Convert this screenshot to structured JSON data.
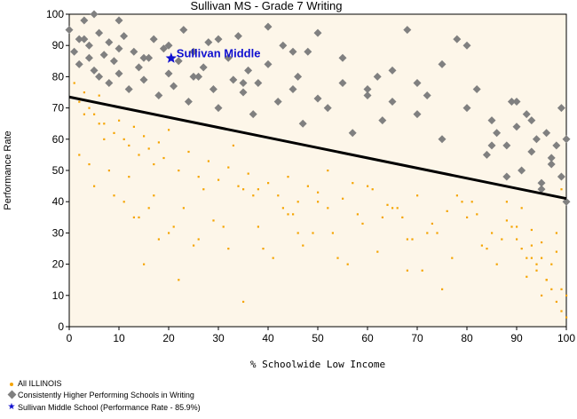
{
  "title": "Sullivan MS - Grade 7 Writing",
  "xlabel": "% Schoolwide Low Income",
  "ylabel": "Performance Rate",
  "highlight_label": "Sullivan Middle",
  "legend": {
    "all": "All ILLINOIS",
    "consistent": "Consistently Higher Performing Schools in Writing",
    "sullivan": "Sullivan Middle School (Performance Rate - 85.9%)"
  },
  "colors": {
    "all": "#f5a400",
    "consistent": "#808080",
    "sullivan": "#1010d0",
    "trend": "#000000",
    "plot_bg": "#fdf6e9"
  },
  "icons": {
    "all": "orange-dot-icon",
    "consistent": "gray-diamond-icon",
    "sullivan": "blue-star-icon"
  },
  "chart_data": {
    "type": "scatter",
    "title": "Sullivan MS - Grade 7 Writing",
    "xlabel": "% Schoolwide Low Income",
    "ylabel": "Performance Rate",
    "xlim": [
      0,
      100
    ],
    "ylim": [
      0,
      100
    ],
    "xticks": [
      0,
      10,
      20,
      30,
      40,
      50,
      60,
      70,
      80,
      90,
      100
    ],
    "yticks": [
      0,
      10,
      20,
      30,
      40,
      50,
      60,
      70,
      80,
      90,
      100
    ],
    "grid": false,
    "trendline": {
      "x": [
        0,
        100
      ],
      "y": [
        73.5,
        41
      ]
    },
    "series": [
      {
        "name": "All ILLINOIS",
        "x": [
          1,
          2,
          3,
          4,
          5,
          6,
          7,
          8,
          9,
          10,
          11,
          12,
          13,
          14,
          15,
          16,
          17,
          18,
          19,
          20,
          22,
          24,
          26,
          28,
          30,
          32,
          34,
          36,
          38,
          40,
          42,
          44,
          46,
          48,
          50,
          52,
          55,
          58,
          61,
          64,
          67,
          70,
          73,
          76,
          79,
          82,
          85,
          88,
          90,
          91,
          92,
          93,
          94,
          95,
          96,
          97,
          98,
          99,
          100,
          2,
          5,
          8,
          11,
          14,
          17,
          20,
          23,
          26,
          29,
          32,
          35,
          38,
          41,
          44,
          47,
          50,
          53,
          56,
          59,
          62,
          65,
          68,
          71,
          74,
          77,
          80,
          83,
          86,
          89,
          92,
          95,
          98,
          3,
          7,
          12,
          16,
          21,
          25,
          33,
          37,
          45,
          52,
          60,
          66,
          72,
          81,
          87,
          93,
          96,
          99,
          4,
          9,
          13,
          18,
          27,
          31,
          39,
          43,
          49,
          57,
          63,
          69,
          78,
          84,
          91,
          94,
          97,
          100,
          6,
          15,
          22,
          35,
          46,
          54,
          68,
          75,
          88,
          90,
          93,
          95,
          98,
          99
        ],
        "y": [
          78,
          72,
          75,
          70,
          68,
          74,
          65,
          71,
          62,
          66,
          60,
          58,
          64,
          55,
          61,
          57,
          52,
          59,
          54,
          63,
          50,
          56,
          48,
          53,
          47,
          51,
          45,
          49,
          44,
          46,
          42,
          48,
          40,
          45,
          43,
          38,
          41,
          36,
          44,
          39,
          35,
          42,
          33,
          37,
          40,
          36,
          30,
          34,
          28,
          25,
          22,
          31,
          18,
          27,
          15,
          20,
          24,
          12,
          10,
          55,
          45,
          50,
          40,
          35,
          42,
          30,
          38,
          28,
          34,
          25,
          44,
          32,
          22,
          36,
          26,
          40,
          30,
          20,
          33,
          24,
          38,
          28,
          18,
          30,
          22,
          35,
          26,
          20,
          32,
          16,
          10,
          8,
          68,
          60,
          48,
          38,
          32,
          26,
          58,
          42,
          36,
          50,
          45,
          38,
          30,
          40,
          28,
          22,
          15,
          5,
          52,
          42,
          35,
          28,
          44,
          32,
          25,
          38,
          30,
          46,
          35,
          28,
          42,
          25,
          38,
          20,
          12,
          3,
          65,
          20,
          15,
          8,
          30,
          22,
          18,
          12,
          40,
          32,
          26,
          22,
          30,
          44
        ]
      },
      {
        "name": "Consistently Higher Performing Schools in Writing",
        "x": [
          0,
          1,
          2,
          2,
          3,
          4,
          4,
          5,
          6,
          6,
          7,
          8,
          8,
          9,
          10,
          10,
          11,
          12,
          13,
          14,
          15,
          16,
          17,
          18,
          19,
          20,
          21,
          22,
          23,
          24,
          25,
          26,
          27,
          28,
          29,
          30,
          32,
          33,
          34,
          35,
          36,
          37,
          38,
          40,
          42,
          43,
          45,
          46,
          47,
          48,
          50,
          52,
          55,
          57,
          60,
          62,
          63,
          65,
          68,
          70,
          72,
          75,
          78,
          80,
          82,
          84,
          85,
          86,
          88,
          89,
          90,
          91,
          92,
          93,
          94,
          95,
          96,
          97,
          98,
          99,
          100,
          100,
          99,
          97,
          95,
          93,
          90,
          88,
          85,
          80,
          75,
          70,
          65,
          60,
          55,
          50,
          45,
          40,
          35,
          30,
          25,
          20,
          15,
          10,
          5,
          3
        ],
        "y": [
          95,
          88,
          92,
          84,
          98,
          86,
          90,
          82,
          94,
          80,
          87,
          91,
          78,
          85,
          89,
          81,
          93,
          76,
          88,
          83,
          79,
          86,
          92,
          74,
          89,
          81,
          77,
          85,
          95,
          72,
          88,
          80,
          83,
          91,
          76,
          70,
          86,
          79,
          93,
          75,
          82,
          68,
          78,
          84,
          72,
          90,
          76,
          80,
          65,
          88,
          73,
          70,
          78,
          62,
          74,
          80,
          66,
          72,
          95,
          68,
          74,
          60,
          92,
          70,
          76,
          55,
          66,
          62,
          58,
          72,
          64,
          50,
          68,
          56,
          60,
          46,
          62,
          54,
          58,
          48,
          60,
          40,
          70,
          52,
          44,
          66,
          72,
          48,
          58,
          90,
          84,
          78,
          82,
          76,
          86,
          94,
          88,
          96,
          78,
          92,
          80,
          90,
          86,
          98,
          100,
          92
        ]
      },
      {
        "name": "Sullivan Middle School (Performance Rate - 85.9%)",
        "x": [
          20.5
        ],
        "y": [
          85.9
        ]
      }
    ]
  }
}
